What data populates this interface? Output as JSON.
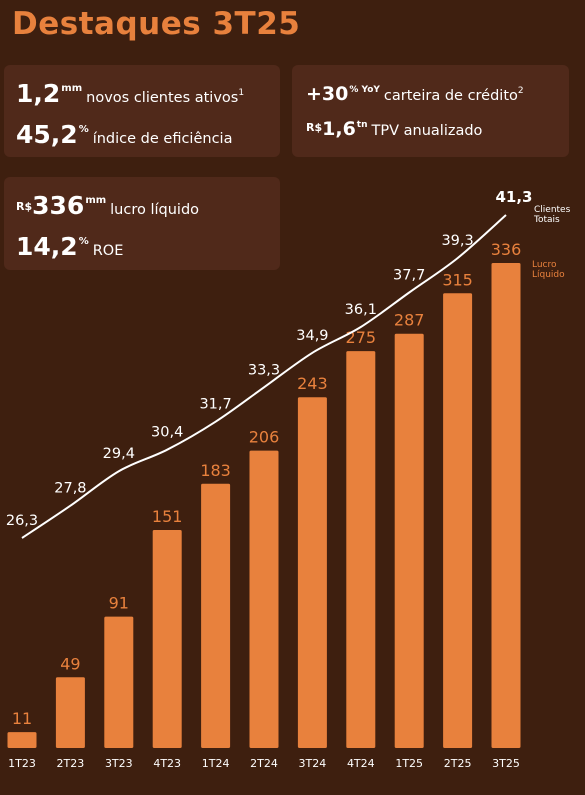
{
  "title": "Destaques 3T25",
  "cards": {
    "clientes": {
      "value": "1,2",
      "unit": "mm",
      "label": "novos clientes ativos",
      "footnote": "1"
    },
    "eficiencia": {
      "value": "45,2",
      "unit": "%",
      "label": "índice de eficiência"
    },
    "credito": {
      "value": "+30",
      "unit": "% YoY",
      "label": "carteira de crédito",
      "footnote": "2"
    },
    "tpv": {
      "prefix": "R$",
      "value": "1,6",
      "unit": "tn",
      "label": "TPV anualizado"
    },
    "lucro": {
      "prefix": "R$",
      "value": "336",
      "unit": "mm",
      "label": "lucro líquido"
    },
    "roe": {
      "value": "14,2",
      "unit": "%",
      "label": "ROE"
    }
  },
  "colors": {
    "background": "#3e1f0f",
    "card": "#50291a",
    "accent": "#e8813d",
    "line": "#ffffff"
  },
  "chart_data": {
    "type": "bar",
    "categories": [
      "1T23",
      "2T23",
      "3T23",
      "4T23",
      "1T24",
      "2T24",
      "3T24",
      "4T24",
      "1T25",
      "2T25",
      "3T25"
    ],
    "series": [
      {
        "name": "Lucro Líquido",
        "type": "bar",
        "color": "#e8813d",
        "values": [
          11,
          49,
          91,
          151,
          183,
          206,
          243,
          275,
          287,
          315,
          336
        ]
      },
      {
        "name": "Clientes Totais",
        "type": "line",
        "color": "#ffffff",
        "values": [
          26.3,
          27.8,
          29.4,
          30.4,
          31.7,
          33.3,
          34.9,
          36.1,
          37.7,
          39.3,
          41.3
        ]
      }
    ],
    "bar_labels": [
      "11",
      "49",
      "91",
      "151",
      "183",
      "206",
      "243",
      "275",
      "287",
      "315",
      "336"
    ],
    "line_labels": [
      "26,3",
      "27,8",
      "29,4",
      "30,4",
      "31,7",
      "33,3",
      "34,9",
      "36,1",
      "37,7",
      "39,3",
      "41,3"
    ],
    "legend": {
      "line": [
        "Clientes",
        "Totais"
      ],
      "bar": [
        "Lucro",
        "Líquido"
      ]
    },
    "legend_placement": "right",
    "grid": false,
    "axes_visible": false
  }
}
